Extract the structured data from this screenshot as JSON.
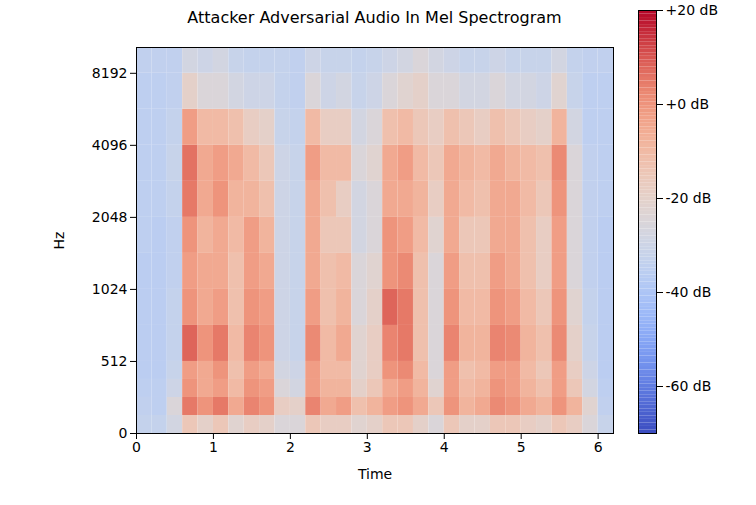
{
  "chart_data": {
    "type": "heatmap",
    "title": "Attacker Adversarial Audio In Mel Spectrogram",
    "xlabel": "Time",
    "ylabel": "Hz",
    "xlim": [
      0,
      6.2
    ],
    "xticks": [
      0,
      1,
      2,
      3,
      4,
      5,
      6
    ],
    "ylim": [
      0,
      10500
    ],
    "yticks": [
      0,
      512,
      1024,
      2048,
      4096,
      8192
    ],
    "time_edges": [
      0,
      0.2,
      0.4,
      0.6,
      0.8,
      1.0,
      1.2,
      1.4,
      1.6,
      1.8,
      2.0,
      2.2,
      2.4,
      2.6,
      2.8,
      3.0,
      3.2,
      3.4,
      3.6,
      3.8,
      4.0,
      4.2,
      4.4,
      4.6,
      4.8,
      5.0,
      5.2,
      5.4,
      5.6,
      5.8,
      6.0,
      6.2
    ],
    "freq_edges": [
      0,
      128,
      256,
      384,
      512,
      724,
      1024,
      1448,
      2048,
      2896,
      4096,
      5793,
      8192,
      10500
    ],
    "cells": [
      [
        -33,
        -34,
        -35,
        -36,
        -36,
        -36,
        -36,
        -35,
        -35,
        -35,
        -35,
        -35,
        -34
      ],
      [
        -33,
        -35,
        -35,
        -36,
        -36,
        -36,
        -36,
        -36,
        -35,
        -35,
        -35,
        -35,
        -34
      ],
      [
        -28,
        -25,
        -30,
        -32,
        -33,
        -33,
        -34,
        -34,
        -33,
        -32,
        -33,
        -34,
        -34
      ],
      [
        -15,
        5,
        0,
        -2,
        8,
        0,
        -2,
        0,
        5,
        6,
        -2,
        -20,
        -28
      ],
      [
        -20,
        0,
        -5,
        -5,
        0,
        -5,
        -5,
        -8,
        -5,
        -5,
        -10,
        -25,
        -30
      ],
      [
        -15,
        5,
        -2,
        0,
        5,
        -2,
        -5,
        -5,
        0,
        -2,
        -10,
        -25,
        -28
      ],
      [
        -22,
        -5,
        -10,
        -12,
        -10,
        -12,
        -12,
        -10,
        -8,
        -5,
        -12,
        -28,
        -32
      ],
      [
        -18,
        3,
        0,
        -2,
        3,
        0,
        -2,
        -2,
        -8,
        -10,
        -18,
        -30,
        -33
      ],
      [
        -20,
        0,
        -2,
        -5,
        0,
        -2,
        -5,
        -8,
        -12,
        -15,
        -20,
        -30,
        -33
      ],
      [
        -25,
        -18,
        -25,
        -28,
        -30,
        -30,
        -30,
        -30,
        -30,
        -30,
        -32,
        -33,
        -33
      ],
      [
        -25,
        -20,
        -28,
        -30,
        -32,
        -32,
        -32,
        -32,
        -32,
        -32,
        -33,
        -34,
        -34
      ],
      [
        -15,
        3,
        -2,
        -2,
        2,
        -2,
        -5,
        -5,
        -5,
        -2,
        -10,
        -25,
        -30
      ],
      [
        -18,
        -5,
        -8,
        -10,
        -10,
        -12,
        -12,
        -15,
        -12,
        -10,
        -18,
        -30,
        -32
      ],
      [
        -18,
        -2,
        -8,
        -10,
        -5,
        -8,
        -10,
        -15,
        -18,
        -10,
        -18,
        -28,
        -32
      ],
      [
        -22,
        -12,
        -20,
        -22,
        -22,
        -25,
        -25,
        -28,
        -28,
        -25,
        -28,
        -32,
        -33
      ],
      [
        -20,
        -8,
        -15,
        -18,
        -18,
        -20,
        -22,
        -25,
        -25,
        -22,
        -25,
        -30,
        -32
      ],
      [
        -15,
        -2,
        -5,
        0,
        3,
        8,
        0,
        0,
        -5,
        -5,
        -12,
        -25,
        -30
      ],
      [
        -15,
        0,
        -2,
        2,
        5,
        5,
        2,
        -2,
        -5,
        -2,
        -10,
        -22,
        -28
      ],
      [
        -20,
        -5,
        -8,
        -10,
        -12,
        -12,
        -12,
        -10,
        -8,
        -10,
        -15,
        -20,
        -25
      ],
      [
        -25,
        -15,
        -22,
        -25,
        -25,
        -25,
        -25,
        -22,
        -18,
        -15,
        -18,
        -25,
        -28
      ],
      [
        -15,
        0,
        -2,
        -2,
        3,
        0,
        -2,
        -5,
        -5,
        -5,
        -12,
        -25,
        -30
      ],
      [
        -20,
        -8,
        -10,
        -12,
        -8,
        -10,
        -12,
        -15,
        -10,
        -8,
        -15,
        -28,
        -32
      ],
      [
        -20,
        -5,
        -8,
        -10,
        -8,
        -10,
        -12,
        -15,
        -12,
        -10,
        -18,
        -28,
        -32
      ],
      [
        -15,
        2,
        0,
        -2,
        3,
        0,
        -2,
        -5,
        -5,
        -5,
        -12,
        -25,
        -30
      ],
      [
        -15,
        0,
        -2,
        -2,
        2,
        -2,
        -5,
        -5,
        -5,
        -8,
        -15,
        -28,
        -32
      ],
      [
        -18,
        -5,
        -8,
        -10,
        -8,
        -10,
        -12,
        -12,
        -10,
        -10,
        -18,
        -28,
        -32
      ],
      [
        -20,
        -8,
        -12,
        -15,
        -12,
        -15,
        -18,
        -18,
        -15,
        -12,
        -20,
        -30,
        -32
      ],
      [
        -15,
        0,
        -2,
        -2,
        2,
        0,
        -2,
        -2,
        0,
        2,
        -8,
        -22,
        -28
      ],
      [
        -18,
        -8,
        -15,
        -18,
        -20,
        -22,
        -25,
        -25,
        -25,
        -25,
        -28,
        -32,
        -33
      ],
      [
        -25,
        -22,
        -28,
        -30,
        -32,
        -33,
        -34,
        -34,
        -34,
        -34,
        -35,
        -35,
        -34
      ],
      [
        -32,
        -34,
        -35,
        -36,
        -36,
        -36,
        -36,
        -36,
        -35,
        -35,
        -35,
        -35,
        -34
      ]
    ],
    "colorbar_range": [
      -70,
      20
    ],
    "colorbar_ticks": [
      {
        "value": 20,
        "label": "+20 dB"
      },
      {
        "value": 0,
        "label": "+0 dB"
      },
      {
        "value": -20,
        "label": "-20 dB"
      },
      {
        "value": -40,
        "label": "-40 dB"
      },
      {
        "value": -60,
        "label": "-60 dB"
      }
    ]
  }
}
